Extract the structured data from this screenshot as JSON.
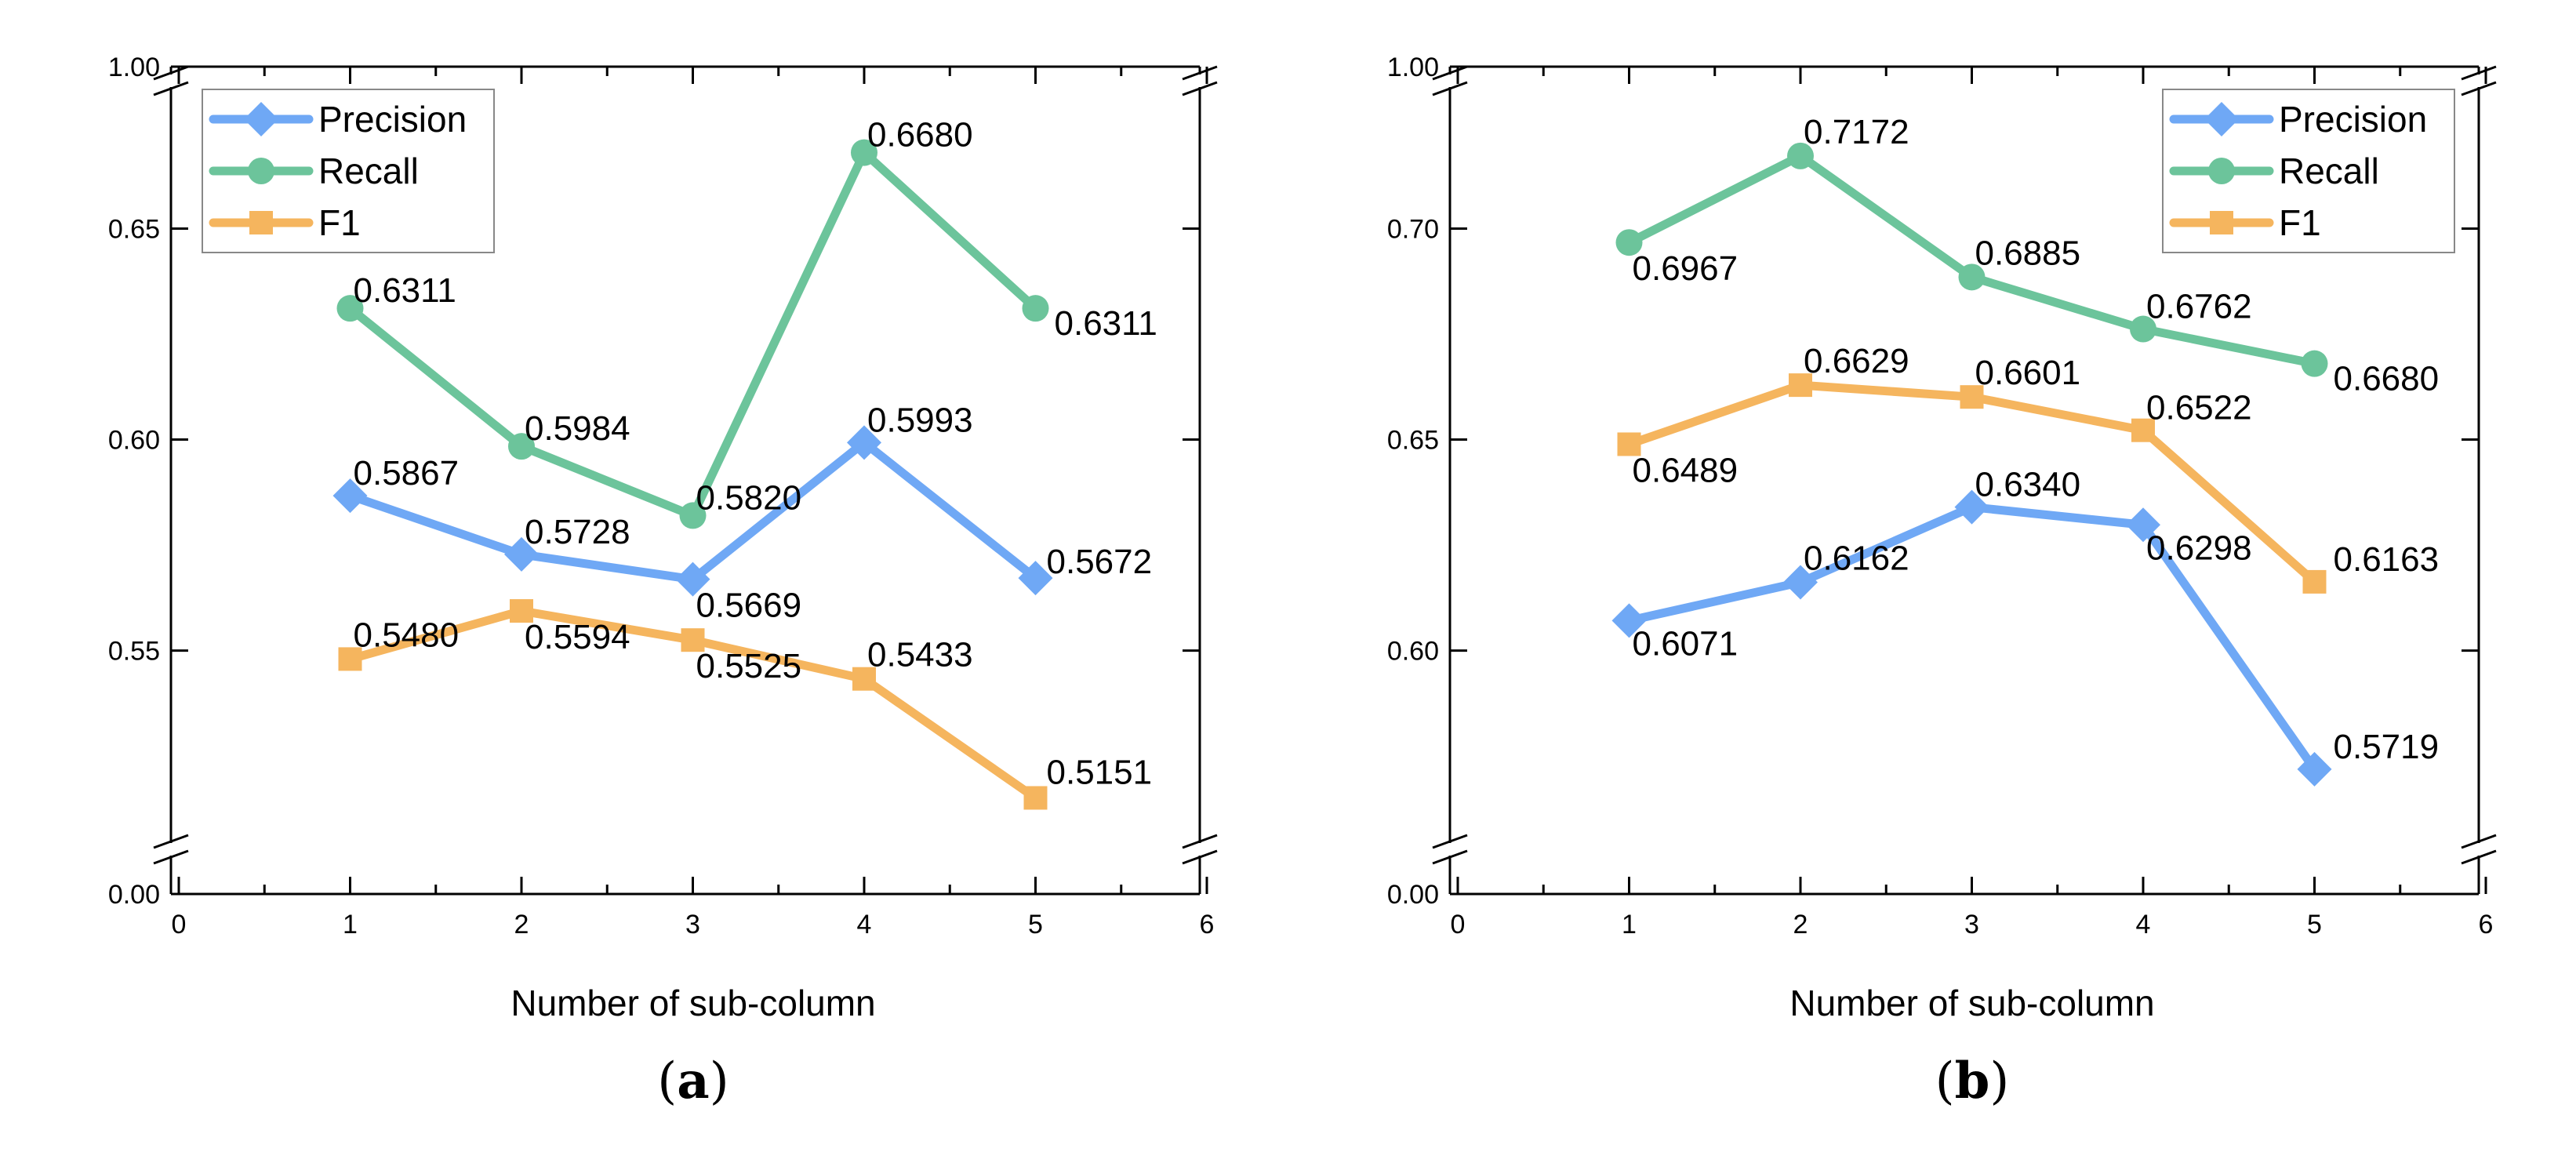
{
  "chart_data": [
    {
      "type": "line",
      "panel_label": "a",
      "xlabel": "Number of sub-column",
      "ylabel": "",
      "xlim": [
        0,
        6
      ],
      "x_ticks": [
        "0",
        "1",
        "2",
        "3",
        "4",
        "5",
        "6"
      ],
      "y_ticks": [
        "0.00",
        "0.55",
        "0.60",
        "0.65",
        "1.00"
      ],
      "ylim_broken": {
        "bottom": 0.0,
        "top": 1.0,
        "inner_low": 0.515,
        "inner_high": 0.68
      },
      "x": [
        1,
        2,
        3,
        4,
        5
      ],
      "legend_position": "top-left",
      "series": [
        {
          "name": "Precision",
          "color": "#6fa8f5",
          "marker": "diamond",
          "values": [
            0.5867,
            0.5728,
            0.5669,
            0.5993,
            0.5672
          ],
          "labels": [
            "0.5867",
            "0.5728",
            "0.5669",
            "0.5993",
            "0.5672"
          ]
        },
        {
          "name": "Recall",
          "color": "#6cc49b",
          "marker": "circle",
          "values": [
            0.6311,
            0.5984,
            0.582,
            0.668,
            0.6311
          ],
          "labels": [
            "0.6311",
            "0.5984",
            "0.5820",
            "0.6680",
            "0.6311"
          ]
        },
        {
          "name": "F1",
          "color": "#f5b55e",
          "marker": "square",
          "values": [
            0.548,
            0.5594,
            0.5525,
            0.5433,
            0.5151
          ],
          "labels": [
            "0.5480",
            "0.5594",
            "0.5525",
            "0.5433",
            "0.5151"
          ]
        }
      ]
    },
    {
      "type": "line",
      "panel_label": "b",
      "xlabel": "Number of sub-column",
      "ylabel": "",
      "xlim": [
        0,
        6
      ],
      "x_ticks": [
        "0",
        "1",
        "2",
        "3",
        "4",
        "5",
        "6"
      ],
      "y_ticks": [
        "0.00",
        "0.60",
        "0.65",
        "0.70",
        "1.00"
      ],
      "ylim_broken": {
        "bottom": 0.0,
        "top": 1.0,
        "inner_low": 0.565,
        "inner_high": 0.73
      },
      "x": [
        1,
        2,
        3,
        4,
        5
      ],
      "legend_position": "top-right",
      "series": [
        {
          "name": "Precision",
          "color": "#6fa8f5",
          "marker": "diamond",
          "values": [
            0.6071,
            0.6162,
            0.634,
            0.6298,
            0.5719
          ],
          "labels": [
            "0.6071",
            "0.6162",
            "0.6340",
            "0.6298",
            "0.5719"
          ]
        },
        {
          "name": "Recall",
          "color": "#6cc49b",
          "marker": "circle",
          "values": [
            0.6967,
            0.7172,
            0.6885,
            0.6762,
            0.668
          ],
          "labels": [
            "0.6967",
            "0.7172",
            "0.6885",
            "0.6762",
            "0.6680"
          ]
        },
        {
          "name": "F1",
          "color": "#f5b55e",
          "marker": "square",
          "values": [
            0.6489,
            0.6629,
            0.6601,
            0.6522,
            0.6163
          ],
          "labels": [
            "0.6489",
            "0.6629",
            "0.6601",
            "0.6522",
            "0.6163"
          ]
        }
      ]
    }
  ]
}
